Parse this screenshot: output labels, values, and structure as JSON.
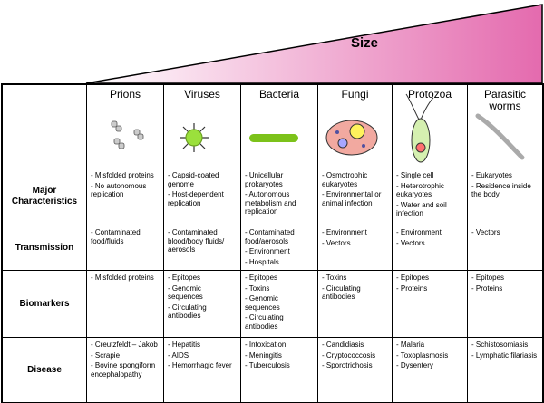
{
  "header": {
    "title": "Size"
  },
  "table": {
    "columns": [
      "Prions",
      "Viruses",
      "Bacteria",
      "Fungi",
      "Protozoa",
      "Parasitic worms"
    ],
    "rows": [
      {
        "label": "Major Characteristics",
        "cells": [
          [
            "- Misfolded proteins",
            "- No autonomous replication"
          ],
          [
            "- Capsid-coated genome",
            "- Host-dependent replication"
          ],
          [
            "- Unicellular prokaryotes",
            "- Autonomous metabolism and replication"
          ],
          [
            "- Osmotrophic eukaryotes",
            "- Environmental or animal infection"
          ],
          [
            "- Single cell",
            "- Heterotrophic eukaryotes",
            "- Water and soil infection"
          ],
          [
            "- Eukaryotes",
            "- Residence inside the body"
          ]
        ]
      },
      {
        "label": "Transmission",
        "cells": [
          [
            "- Contaminated food/fluids"
          ],
          [
            "- Contaminated blood/body fluids/ aerosols"
          ],
          [
            "- Contaminated food/aerosols",
            "- Environment",
            "- Hospitals"
          ],
          [
            "- Environment",
            "- Vectors"
          ],
          [
            "- Environment",
            "- Vectors"
          ],
          [
            "- Vectors"
          ]
        ]
      },
      {
        "label": "Biomarkers",
        "cells": [
          [
            "- Misfolded proteins"
          ],
          [
            "- Epitopes",
            "- Genomic sequences",
            "- Circulating antibodies"
          ],
          [
            "- Epitopes",
            "- Toxins",
            "- Genomic sequences",
            "- Circulating antibodies"
          ],
          [
            "- Toxins",
            "- Circulating antibodies"
          ],
          [
            "- Epitopes",
            "- Proteins"
          ],
          [
            "- Epitopes",
            "- Proteins"
          ]
        ]
      },
      {
        "label": "Disease",
        "cells": [
          [
            "- Creutzfeldt – Jakob",
            "- Scrapie",
            "- Bovine spongiform encephalopathy"
          ],
          [
            "- Hepatitis",
            "- AIDS",
            "- Hemorrhagic fever"
          ],
          [
            "- Intoxication",
            "- Meningitis",
            "- Tuberculosis"
          ],
          [
            "- Candidiasis",
            "- Cryptococcosis",
            "- Sporotrichosis"
          ],
          [
            "- Malaria",
            "- Toxoplasmosis",
            "- Dysentery"
          ],
          [
            "- Schistosomiasis",
            "- Lymphatic filariasis"
          ]
        ]
      }
    ]
  }
}
